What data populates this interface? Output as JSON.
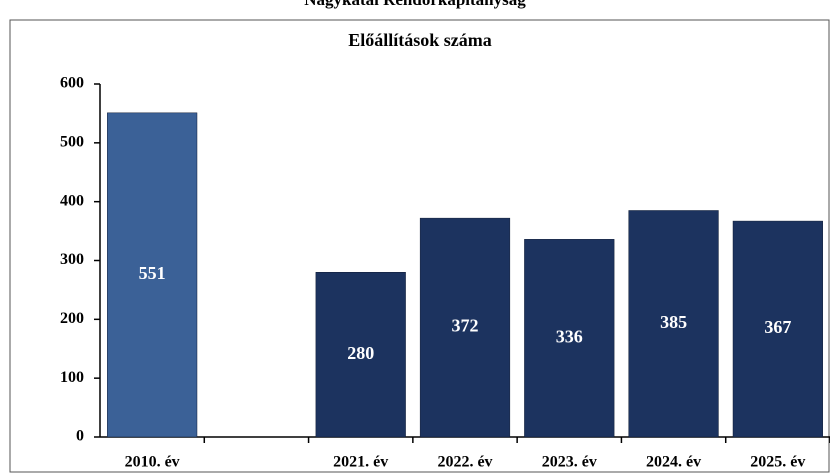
{
  "chart_data": {
    "type": "bar",
    "suptitle": "Nagykátai Rendőrkapitányság",
    "title": "Előállítások száma",
    "categories": [
      "2010. év",
      null,
      "2021. év",
      "2022. év",
      "2023. év",
      "2024. év",
      "2025. év"
    ],
    "series": [
      {
        "color": "#3b6197",
        "values": [
          551,
          null,
          null,
          null,
          null,
          null,
          null
        ]
      },
      {
        "color": "#1c335f",
        "values": [
          null,
          null,
          280,
          372,
          336,
          385,
          367
        ]
      }
    ],
    "ylim": [
      0,
      600
    ],
    "yticks": [
      0,
      100,
      200,
      300,
      400,
      500,
      600
    ]
  }
}
